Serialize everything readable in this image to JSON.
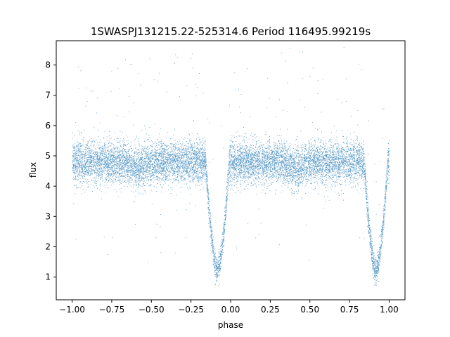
{
  "chart_data": {
    "type": "scatter",
    "title": "1SWASPJ131215.22-525314.6 Period 116495.99219s",
    "xlabel": "phase",
    "ylabel": "flux",
    "xlim": [
      -1.1,
      1.1
    ],
    "ylim": [
      0.25,
      8.8
    ],
    "x_ticks": [
      -1.0,
      -0.75,
      -0.5,
      -0.25,
      0.0,
      0.25,
      0.5,
      0.75,
      1.0
    ],
    "x_tick_labels": [
      "−1.00",
      "−0.75",
      "−0.50",
      "−0.25",
      "0.00",
      "0.25",
      "0.50",
      "0.75",
      "1.00"
    ],
    "y_ticks": [
      1,
      2,
      3,
      4,
      5,
      6,
      7,
      8
    ],
    "y_tick_labels": [
      "1",
      "2",
      "3",
      "4",
      "5",
      "6",
      "7",
      "8"
    ],
    "grid": false,
    "point_color": "#1f77b4",
    "series": [
      {
        "phase_range": [
          -1.0,
          1.0
        ],
        "baseline_flux": 4.8,
        "baseline_scatter": 0.35,
        "primary_eclipse": {
          "phase": -0.085,
          "min_flux": 1.2,
          "half_width": 0.075
        },
        "secondary_eclipse": {
          "phase": 0.915,
          "min_flux": 1.2,
          "half_width": 0.075
        },
        "secondary_dip": {
          "phase": -0.585,
          "depth": 0.2,
          "half_width": 0.06
        },
        "secondary_dip_2": {
          "phase": 0.415,
          "depth": 0.2,
          "half_width": 0.06
        },
        "approx_points": 12000
      }
    ]
  }
}
